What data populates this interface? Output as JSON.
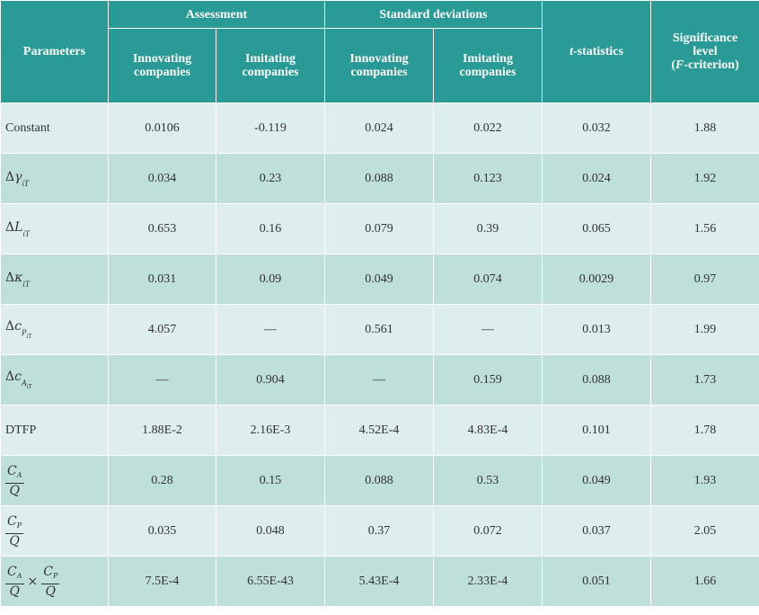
{
  "header": {
    "parameters": "Parameters",
    "assessment": "Assessment",
    "std_dev": "Standard deviations",
    "innovating": "Innovating companies",
    "imitating": "Imitating companies",
    "tstat_t": "t",
    "tstat_rest": "-statistics",
    "sig_line1": "Significance",
    "sig_line2": "level",
    "sig_open": "(",
    "sig_F": "F",
    "sig_close": "-criterion)"
  },
  "symbols": {
    "delta": "Δ",
    "gamma": "γ",
    "L": "L",
    "kappa": "κ",
    "c": "c",
    "iT": "iT",
    "P": "P",
    "A": "A",
    "CA": "C",
    "CP": "C",
    "Q": "Q",
    "times": "×"
  },
  "rows": [
    {
      "param": "Constant",
      "c1": "0.0106",
      "c2": "-0.119",
      "c3": "0.024",
      "c4": "0.022",
      "c5": "0.032",
      "c6": "1.88"
    },
    {
      "param": "Δγ_iT",
      "c1": "0.034",
      "c2": "0.23",
      "c3": "0.088",
      "c4": "0.123",
      "c5": "0.024",
      "c6": "1.92"
    },
    {
      "param": "ΔL_iT",
      "c1": "0.653",
      "c2": "0.16",
      "c3": "0.079",
      "c4": "0.39",
      "c5": "0.065",
      "c6": "1.56"
    },
    {
      "param": "Δκ_iT",
      "c1": "0.031",
      "c2": "0.09",
      "c3": "0.049",
      "c4": "0.074",
      "c5": "0.0029",
      "c6": "0.97"
    },
    {
      "param": "Δc_P,iT",
      "c1": "4.057",
      "c2": "—",
      "c3": "0.561",
      "c4": "—",
      "c5": "0.013",
      "c6": "1.99"
    },
    {
      "param": "Δc_A,iT",
      "c1": "—",
      "c2": "0.904",
      "c3": "—",
      "c4": "0.159",
      "c5": "0.088",
      "c6": "1.73"
    },
    {
      "param": "DTFP",
      "c1": "1.88E-2",
      "c2": "2.16E-3",
      "c3": "4.52E-4",
      "c4": "4.83E-4",
      "c5": "0.101",
      "c6": "1.78"
    },
    {
      "param": "C_A/Q",
      "c1": "0.28",
      "c2": "0.15",
      "c3": "0.088",
      "c4": "0.53",
      "c5": "0.049",
      "c6": "1.93"
    },
    {
      "param": "C_P/Q",
      "c1": "0.035",
      "c2": "0.048",
      "c3": "0.37",
      "c4": "0.072",
      "c5": "0.037",
      "c6": "2.05"
    },
    {
      "param": "C_A/Q × C_P/Q",
      "c1": "7.5E-4",
      "c2": "6.55E-43",
      "c3": "5.43E-4",
      "c4": "2.33E-4",
      "c5": "0.051",
      "c6": "1.66"
    }
  ]
}
